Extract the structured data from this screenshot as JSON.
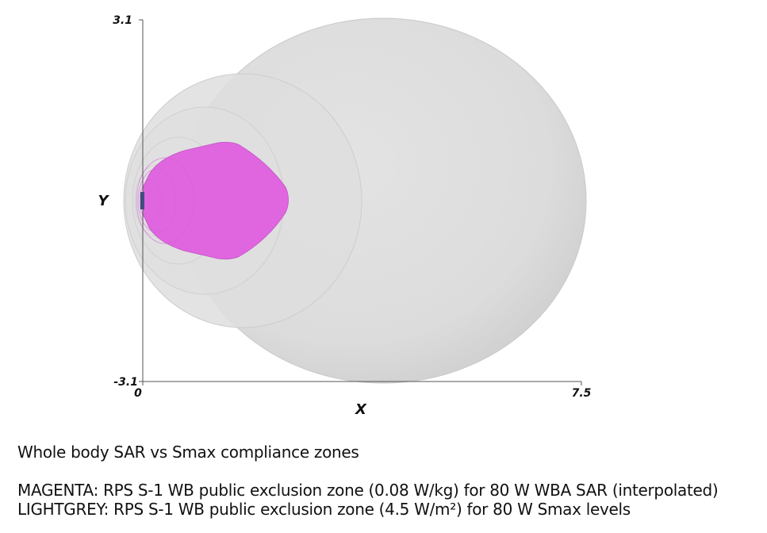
{
  "axes": {
    "x_label": "X",
    "y_label": "Y",
    "x_min_label": "0",
    "x_max_label": "7.5",
    "y_min_label": "-3.1",
    "y_max_label": "3.1",
    "xlim": [
      0,
      7.5
    ],
    "ylim": [
      -3.1,
      3.1
    ]
  },
  "zones": {
    "smax_color": "#dcdcdc",
    "sar_color": "#e066e0",
    "source_color": "#3a4a8a"
  },
  "caption": {
    "title": "Whole body SAR vs Smax compliance zones",
    "line1": "MAGENTA: RPS S-1 WB public exclusion zone (0.08 W/kg) for 80 W WBA SAR (interpolated)",
    "line2": "LIGHTGREY: RPS S-1 WB public exclusion zone (4.5 W/m²) for 80 W Smax levels"
  }
}
